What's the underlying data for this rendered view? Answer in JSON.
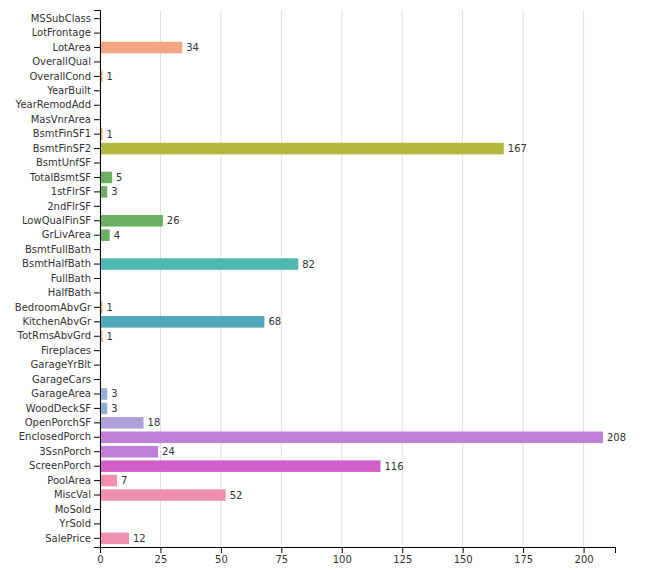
{
  "chart_data": {
    "type": "bar",
    "orientation": "horizontal",
    "categories": [
      "MSSubClass",
      "LotFrontage",
      "LotArea",
      "OverallQual",
      "OverallCond",
      "YearBuilt",
      "YearRemodAdd",
      "MasVnrArea",
      "BsmtFinSF1",
      "BsmtFinSF2",
      "BsmtUnfSF",
      "TotalBsmtSF",
      "1stFlrSF",
      "2ndFlrSF",
      "LowQualFinSF",
      "GrLivArea",
      "BsmtFullBath",
      "BsmtHalfBath",
      "FullBath",
      "HalfBath",
      "BedroomAbvGr",
      "KitchenAbvGr",
      "TotRmsAbvGrd",
      "Fireplaces",
      "GarageYrBlt",
      "GarageCars",
      "GarageArea",
      "WoodDeckSF",
      "OpenPorchSF",
      "EnclosedPorch",
      "3SsnPorch",
      "ScreenPorch",
      "PoolArea",
      "MiscVal",
      "MoSold",
      "YrSold",
      "SalePrice"
    ],
    "values": [
      0,
      0,
      34,
      0,
      1,
      0,
      0,
      0,
      1,
      167,
      0,
      5,
      3,
      0,
      26,
      4,
      0,
      82,
      0,
      0,
      1,
      68,
      1,
      0,
      0,
      0,
      3,
      3,
      18,
      208,
      24,
      116,
      7,
      52,
      0,
      0,
      12
    ],
    "value_labels": [
      null,
      null,
      "34",
      null,
      "1",
      null,
      null,
      null,
      "1",
      "167",
      null,
      "5",
      "3",
      null,
      "26",
      "4",
      null,
      "82",
      null,
      null,
      "1",
      "68",
      "1",
      null,
      null,
      null,
      "3",
      "3",
      "18",
      "208",
      "24",
      "116",
      "7",
      "52",
      null,
      null,
      "12"
    ],
    "colors": [
      "#f4a582",
      "#f4a582",
      "#f4a582",
      "#f4a582",
      "#f0a060",
      "#f4a582",
      "#f4a582",
      "#f4a582",
      "#f0a060",
      "#b5b840",
      "#f4a582",
      "#6ab060",
      "#6ab060",
      "#f4a582",
      "#6ab060",
      "#6ab060",
      "#f4a582",
      "#50b8b0",
      "#f4a582",
      "#f4a582",
      "#f0a060",
      "#50a8b8",
      "#f0a060",
      "#f4a582",
      "#f4a582",
      "#f4a582",
      "#90b0d8",
      "#90b0d8",
      "#b0a0d8",
      "#c080d8",
      "#c080d8",
      "#d060c8",
      "#f090b0",
      "#f090b0",
      "#f4a582",
      "#f4a582",
      "#f090b0"
    ],
    "xlim": [
      0,
      213
    ],
    "xticks": [
      0,
      25,
      50,
      75,
      100,
      125,
      150,
      175,
      200
    ],
    "grid": true,
    "data_labels": true
  }
}
